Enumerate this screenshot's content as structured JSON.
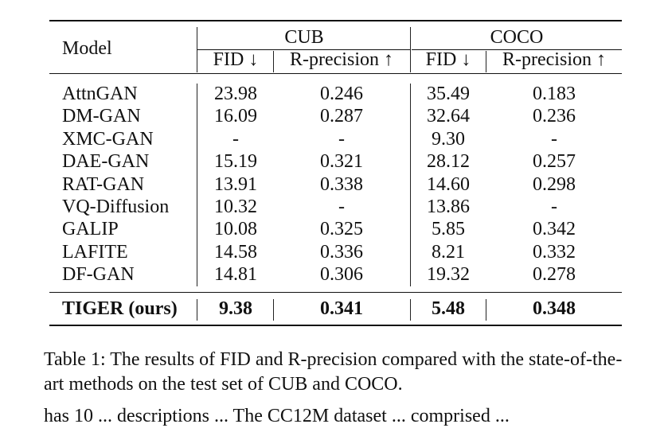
{
  "table": {
    "model_header": "Model",
    "groups": [
      "CUB",
      "COCO"
    ],
    "subheaders": [
      "FID ↓",
      "R-precision ↑",
      "FID ↓",
      "R-precision ↑"
    ],
    "rows": [
      {
        "model": "AttnGAN",
        "cub_fid": "23.98",
        "cub_r": "0.246",
        "coco_fid": "35.49",
        "coco_r": "0.183"
      },
      {
        "model": "DM-GAN",
        "cub_fid": "16.09",
        "cub_r": "0.287",
        "coco_fid": "32.64",
        "coco_r": "0.236"
      },
      {
        "model": "XMC-GAN",
        "cub_fid": "-",
        "cub_r": "-",
        "coco_fid": "9.30",
        "coco_r": "-"
      },
      {
        "model": "DAE-GAN",
        "cub_fid": "15.19",
        "cub_r": "0.321",
        "coco_fid": "28.12",
        "coco_r": "0.257"
      },
      {
        "model": "RAT-GAN",
        "cub_fid": "13.91",
        "cub_r": "0.338",
        "coco_fid": "14.60",
        "coco_r": "0.298"
      },
      {
        "model": "VQ-Diffusion",
        "cub_fid": "10.32",
        "cub_r": "-",
        "coco_fid": "13.86",
        "coco_r": "-"
      },
      {
        "model": "GALIP",
        "cub_fid": "10.08",
        "cub_r": "0.325",
        "coco_fid": "5.85",
        "coco_r": "0.342"
      },
      {
        "model": "LAFITE",
        "cub_fid": "14.58",
        "cub_r": "0.336",
        "coco_fid": "8.21",
        "coco_r": "0.332"
      },
      {
        "model": "DF-GAN",
        "cub_fid": "14.81",
        "cub_r": "0.306",
        "coco_fid": "19.32",
        "coco_r": "0.278"
      }
    ],
    "ours": {
      "model": "TIGER (ours)",
      "cub_fid": "9.38",
      "cub_r": "0.341",
      "coco_fid": "5.48",
      "coco_r": "0.348"
    }
  },
  "caption": "Table 1: The results of FID and R-precision compared with the state-of-the-art methods on the test set of CUB and COCO.",
  "bottom_text": "has 10 ... descriptions ... The CC12M dataset ... comprised ..."
}
